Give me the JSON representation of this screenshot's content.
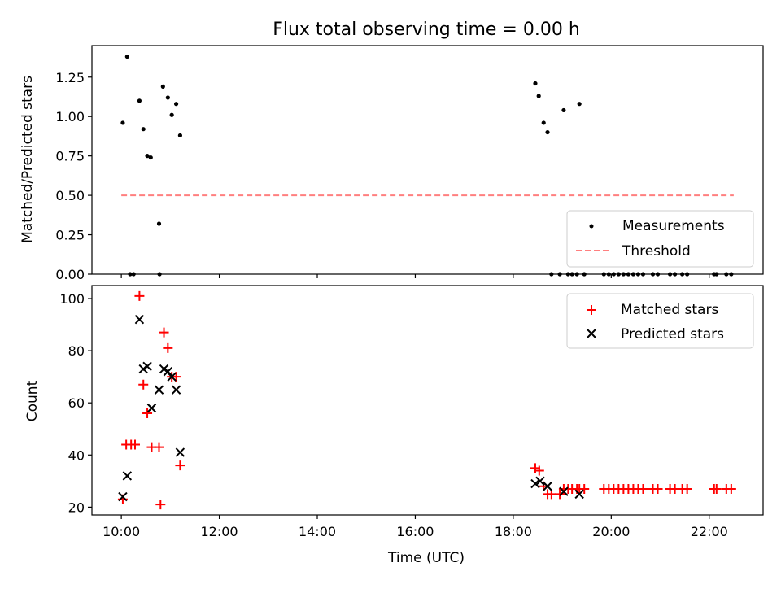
{
  "chart_data": [
    {
      "type": "scatter",
      "title": "Flux total observing time = 0.00 h",
      "ylabel": "Matched/Predicted stars",
      "xlabel": "",
      "xlim": [
        9.4,
        23.1
      ],
      "ylim": [
        0,
        1.45
      ],
      "yticks": [
        {
          "v": 0,
          "label": "0.00"
        },
        {
          "v": 0.25,
          "label": "0.25"
        },
        {
          "v": 0.5,
          "label": "0.50"
        },
        {
          "v": 0.75,
          "label": "0.75"
        },
        {
          "v": 1.0,
          "label": "1.00"
        },
        {
          "v": 1.25,
          "label": "1.25"
        }
      ],
      "legend": {
        "position": "lower-right",
        "entries": [
          {
            "name": "Measurements",
            "marker": "dot",
            "color": "#000000"
          },
          {
            "name": "Threshold",
            "marker": "dashed-line",
            "color": "#ff7f7f"
          }
        ]
      },
      "series": [
        {
          "name": "Measurements",
          "marker": "dot",
          "color": "#000000",
          "x": [
            10.03,
            10.12,
            10.18,
            10.25,
            10.37,
            10.45,
            10.53,
            10.6,
            10.77,
            10.78,
            10.85,
            10.95,
            11.03,
            11.12,
            11.2,
            18.45,
            18.52,
            18.62,
            18.7,
            18.78,
            18.95,
            19.03,
            19.12,
            19.2,
            19.3,
            19.35,
            19.45,
            19.85,
            19.95,
            20.05,
            20.15,
            20.25,
            20.35,
            20.45,
            20.55,
            20.65,
            20.85,
            20.95,
            21.2,
            21.3,
            21.45,
            21.55,
            22.1,
            22.15,
            22.35,
            22.45
          ],
          "y": [
            0.96,
            1.38,
            0,
            0,
            1.1,
            0.92,
            0.75,
            0.74,
            0.32,
            0,
            1.19,
            1.12,
            1.01,
            1.08,
            0.88,
            1.21,
            1.13,
            0.96,
            0.9,
            0,
            0,
            1.04,
            0,
            0,
            0,
            1.08,
            0,
            0,
            0,
            0,
            0,
            0,
            0,
            0,
            0,
            0,
            0,
            0,
            0,
            0,
            0,
            0,
            0,
            0,
            0,
            0
          ]
        },
        {
          "name": "Threshold",
          "marker": "dashed-line",
          "color": "#ff7f7f",
          "x": [
            10.0,
            22.5
          ],
          "y": [
            0.5,
            0.5
          ]
        }
      ]
    },
    {
      "type": "scatter",
      "title": "",
      "ylabel": "Count",
      "xlabel": "Time (UTC)",
      "xlim": [
        9.4,
        23.1
      ],
      "ylim": [
        17,
        105
      ],
      "yticks": [
        {
          "v": 20,
          "label": "20"
        },
        {
          "v": 40,
          "label": "40"
        },
        {
          "v": 60,
          "label": "60"
        },
        {
          "v": 80,
          "label": "80"
        },
        {
          "v": 100,
          "label": "100"
        }
      ],
      "xticks": [
        {
          "v": 10,
          "label": "10:00"
        },
        {
          "v": 12,
          "label": "12:00"
        },
        {
          "v": 14,
          "label": "14:00"
        },
        {
          "v": 16,
          "label": "16:00"
        },
        {
          "v": 18,
          "label": "18:00"
        },
        {
          "v": 20,
          "label": "20:00"
        },
        {
          "v": 22,
          "label": "22:00"
        }
      ],
      "legend": {
        "position": "top-right",
        "entries": [
          {
            "name": "Matched stars",
            "marker": "plus",
            "color": "#ff0000"
          },
          {
            "name": "Predicted stars",
            "marker": "x",
            "color": "#000000"
          }
        ]
      },
      "series": [
        {
          "name": "Matched stars",
          "marker": "plus",
          "color": "#ff0000",
          "x": [
            10.03,
            10.1,
            10.2,
            10.28,
            10.37,
            10.45,
            10.53,
            10.62,
            10.77,
            10.8,
            10.87,
            10.95,
            11.03,
            11.12,
            11.2,
            18.45,
            18.53,
            18.62,
            18.7,
            18.78,
            18.95,
            19.03,
            19.12,
            19.2,
            19.3,
            19.35,
            19.45,
            19.85,
            19.95,
            20.05,
            20.15,
            20.25,
            20.35,
            20.45,
            20.55,
            20.65,
            20.85,
            20.95,
            21.2,
            21.3,
            21.45,
            21.55,
            22.1,
            22.15,
            22.35,
            22.45
          ],
          "y": [
            23,
            44,
            44,
            44,
            101,
            67,
            56,
            43,
            43,
            21,
            87,
            81,
            70,
            70,
            36,
            35,
            34,
            28,
            25,
            25,
            25,
            27,
            27,
            27,
            27,
            27,
            27,
            27,
            27,
            27,
            27,
            27,
            27,
            27,
            27,
            27,
            27,
            27,
            27,
            27,
            27,
            27,
            27,
            27,
            27,
            27
          ]
        },
        {
          "name": "Predicted stars",
          "marker": "x",
          "color": "#000000",
          "x": [
            10.03,
            10.12,
            10.37,
            10.45,
            10.53,
            10.62,
            10.77,
            10.87,
            10.95,
            11.03,
            11.12,
            11.2,
            18.45,
            18.55,
            18.7,
            19.03,
            19.35
          ],
          "y": [
            24,
            32,
            92,
            73,
            74,
            58,
            65,
            73,
            72,
            70,
            65,
            41,
            29,
            30,
            28,
            26,
            25
          ]
        }
      ]
    }
  ]
}
